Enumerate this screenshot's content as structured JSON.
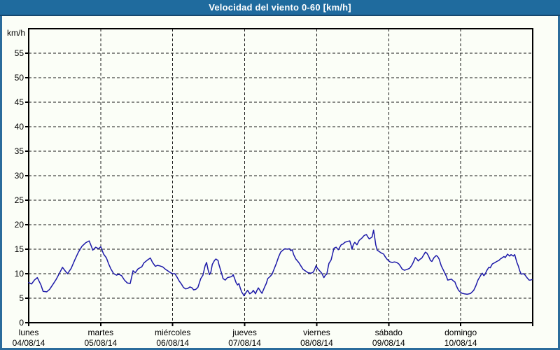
{
  "window": {
    "title": "Velocidad del viento 0-60 [km/h]",
    "colors": {
      "title_bar": "#1f6b9e",
      "title_bar_edge": "#16486e",
      "title_text": "#ffffff",
      "frame": "#2b6c9c",
      "background": "#fbfef7",
      "axis": "#000000",
      "grid": "#1a1a1a",
      "line": "#1c19a8"
    }
  },
  "chart_data": {
    "type": "line",
    "title": "Velocidad del viento 0-60 [km/h]",
    "ylabel": "km/h",
    "ylim": [
      0,
      60
    ],
    "y_tick_step": 5,
    "y_tick_labels": [
      "0",
      "5",
      "10",
      "15",
      "20",
      "25",
      "30",
      "35",
      "40",
      "45",
      "50",
      "55"
    ],
    "grid": "dashed",
    "legend": "none",
    "x_axis": {
      "unit": "days",
      "range_days": [
        0,
        7
      ],
      "days": [
        {
          "label": "lunes",
          "date": "04/08/14"
        },
        {
          "label": "martes",
          "date": "05/08/14"
        },
        {
          "label": "miércoles",
          "date": "06/08/14"
        },
        {
          "label": "jueves",
          "date": "07/08/14"
        },
        {
          "label": "viernes",
          "date": "08/08/14"
        },
        {
          "label": "sábado",
          "date": "09/08/14"
        },
        {
          "label": "domingo",
          "date": "10/08/14"
        }
      ]
    },
    "series": [
      {
        "name": "velocidad-del-viento",
        "color": "#1c19a8",
        "points": [
          [
            0.0,
            8.2
          ],
          [
            0.04,
            7.9
          ],
          [
            0.08,
            8.7
          ],
          [
            0.12,
            9.2
          ],
          [
            0.17,
            7.7
          ],
          [
            0.2,
            6.4
          ],
          [
            0.25,
            6.3
          ],
          [
            0.29,
            6.8
          ],
          [
            0.34,
            7.9
          ],
          [
            0.38,
            8.8
          ],
          [
            0.42,
            9.9
          ],
          [
            0.47,
            11.3
          ],
          [
            0.51,
            10.5
          ],
          [
            0.54,
            10.0
          ],
          [
            0.59,
            11.1
          ],
          [
            0.64,
            12.8
          ],
          [
            0.69,
            14.4
          ],
          [
            0.74,
            15.6
          ],
          [
            0.79,
            16.3
          ],
          [
            0.84,
            16.7
          ],
          [
            0.87,
            15.6
          ],
          [
            0.89,
            14.8
          ],
          [
            0.93,
            15.4
          ],
          [
            0.97,
            15.1
          ],
          [
            1.0,
            15.5
          ],
          [
            1.04,
            14.0
          ],
          [
            1.08,
            13.2
          ],
          [
            1.11,
            12.0
          ],
          [
            1.14,
            11.0
          ],
          [
            1.18,
            10.0
          ],
          [
            1.22,
            9.7
          ],
          [
            1.25,
            9.9
          ],
          [
            1.29,
            9.6
          ],
          [
            1.33,
            8.7
          ],
          [
            1.37,
            8.1
          ],
          [
            1.41,
            8.0
          ],
          [
            1.45,
            10.6
          ],
          [
            1.48,
            10.2
          ],
          [
            1.52,
            11.0
          ],
          [
            1.57,
            11.4
          ],
          [
            1.6,
            12.2
          ],
          [
            1.65,
            12.8
          ],
          [
            1.69,
            13.2
          ],
          [
            1.72,
            12.3
          ],
          [
            1.76,
            11.5
          ],
          [
            1.79,
            11.7
          ],
          [
            1.82,
            11.6
          ],
          [
            1.86,
            11.4
          ],
          [
            1.9,
            10.9
          ],
          [
            1.93,
            10.6
          ],
          [
            1.97,
            10.2
          ],
          [
            2.0,
            10.0
          ],
          [
            2.03,
            10.0
          ],
          [
            2.06,
            9.3
          ],
          [
            2.09,
            8.5
          ],
          [
            2.12,
            7.9
          ],
          [
            2.15,
            7.2
          ],
          [
            2.18,
            6.9
          ],
          [
            2.21,
            7.0
          ],
          [
            2.24,
            7.3
          ],
          [
            2.27,
            7.1
          ],
          [
            2.29,
            6.7
          ],
          [
            2.32,
            6.8
          ],
          [
            2.35,
            7.2
          ],
          [
            2.39,
            9.0
          ],
          [
            2.42,
            9.7
          ],
          [
            2.45,
            11.6
          ],
          [
            2.47,
            12.3
          ],
          [
            2.49,
            10.9
          ],
          [
            2.51,
            9.8
          ],
          [
            2.53,
            10.3
          ],
          [
            2.55,
            11.9
          ],
          [
            2.58,
            12.7
          ],
          [
            2.6,
            13.0
          ],
          [
            2.63,
            12.7
          ],
          [
            2.64,
            12.0
          ],
          [
            2.66,
            11.0
          ],
          [
            2.68,
            10.0
          ],
          [
            2.7,
            9.0
          ],
          [
            2.73,
            8.7
          ],
          [
            2.76,
            9.2
          ],
          [
            2.79,
            9.3
          ],
          [
            2.82,
            9.4
          ],
          [
            2.84,
            9.8
          ],
          [
            2.86,
            9.0
          ],
          [
            2.88,
            8.2
          ],
          [
            2.9,
            7.7
          ],
          [
            2.92,
            8.0
          ],
          [
            2.94,
            7.0
          ],
          [
            2.96,
            6.2
          ],
          [
            2.98,
            5.8
          ],
          [
            2.99,
            5.5
          ],
          [
            3.02,
            6.2
          ],
          [
            3.04,
            6.6
          ],
          [
            3.07,
            5.9
          ],
          [
            3.1,
            6.2
          ],
          [
            3.12,
            6.6
          ],
          [
            3.15,
            5.9
          ],
          [
            3.17,
            6.6
          ],
          [
            3.19,
            7.1
          ],
          [
            3.22,
            6.4
          ],
          [
            3.24,
            6.0
          ],
          [
            3.26,
            6.7
          ],
          [
            3.28,
            7.4
          ],
          [
            3.3,
            8.0
          ],
          [
            3.32,
            9.0
          ],
          [
            3.35,
            9.4
          ],
          [
            3.38,
            9.9
          ],
          [
            3.41,
            11.0
          ],
          [
            3.44,
            12.1
          ],
          [
            3.47,
            13.4
          ],
          [
            3.5,
            14.4
          ],
          [
            3.53,
            14.8
          ],
          [
            3.56,
            15.1
          ],
          [
            3.59,
            15.0
          ],
          [
            3.62,
            15.1
          ],
          [
            3.64,
            14.7
          ],
          [
            3.66,
            14.9
          ],
          [
            3.68,
            13.9
          ],
          [
            3.71,
            13.0
          ],
          [
            3.75,
            12.3
          ],
          [
            3.78,
            11.6
          ],
          [
            3.81,
            10.9
          ],
          [
            3.85,
            10.5
          ],
          [
            3.88,
            10.2
          ],
          [
            3.92,
            10.1
          ],
          [
            3.95,
            10.3
          ],
          [
            3.97,
            10.8
          ],
          [
            3.99,
            11.6
          ],
          [
            4.01,
            11.1
          ],
          [
            4.04,
            10.6
          ],
          [
            4.07,
            10.1
          ],
          [
            4.1,
            9.2
          ],
          [
            4.12,
            9.7
          ],
          [
            4.14,
            9.9
          ],
          [
            4.17,
            12.1
          ],
          [
            4.2,
            12.8
          ],
          [
            4.24,
            15.2
          ],
          [
            4.27,
            15.4
          ],
          [
            4.3,
            14.9
          ],
          [
            4.34,
            15.9
          ],
          [
            4.37,
            16.1
          ],
          [
            4.39,
            16.4
          ],
          [
            4.43,
            16.6
          ],
          [
            4.46,
            16.7
          ],
          [
            4.48,
            15.7
          ],
          [
            4.49,
            15.0
          ],
          [
            4.51,
            16.0
          ],
          [
            4.53,
            16.4
          ],
          [
            4.56,
            15.9
          ],
          [
            4.59,
            16.8
          ],
          [
            4.63,
            17.3
          ],
          [
            4.66,
            17.8
          ],
          [
            4.69,
            18.0
          ],
          [
            4.71,
            17.5
          ],
          [
            4.73,
            17.1
          ],
          [
            4.75,
            17.3
          ],
          [
            4.77,
            17.5
          ],
          [
            4.79,
            18.9
          ],
          [
            4.81,
            17.0
          ],
          [
            4.82,
            15.9
          ],
          [
            4.84,
            14.8
          ],
          [
            4.86,
            14.6
          ],
          [
            4.9,
            14.2
          ],
          [
            4.93,
            14.0
          ],
          [
            4.95,
            13.5
          ],
          [
            4.98,
            12.9
          ],
          [
            5.02,
            12.4
          ],
          [
            5.05,
            12.3
          ],
          [
            5.08,
            12.4
          ],
          [
            5.11,
            12.3
          ],
          [
            5.14,
            12.0
          ],
          [
            5.16,
            11.6
          ],
          [
            5.19,
            10.9
          ],
          [
            5.22,
            10.7
          ],
          [
            5.26,
            10.9
          ],
          [
            5.29,
            11.1
          ],
          [
            5.32,
            11.7
          ],
          [
            5.34,
            12.3
          ],
          [
            5.37,
            13.3
          ],
          [
            5.39,
            13.0
          ],
          [
            5.41,
            12.6
          ],
          [
            5.43,
            12.9
          ],
          [
            5.46,
            13.2
          ],
          [
            5.48,
            13.7
          ],
          [
            5.51,
            14.4
          ],
          [
            5.53,
            14.2
          ],
          [
            5.55,
            13.7
          ],
          [
            5.58,
            12.7
          ],
          [
            5.6,
            12.5
          ],
          [
            5.63,
            13.3
          ],
          [
            5.66,
            13.7
          ],
          [
            5.68,
            13.5
          ],
          [
            5.7,
            13.0
          ],
          [
            5.73,
            11.6
          ],
          [
            5.76,
            10.7
          ],
          [
            5.78,
            10.1
          ],
          [
            5.8,
            9.5
          ],
          [
            5.82,
            8.7
          ],
          [
            5.85,
            8.8
          ],
          [
            5.87,
            8.9
          ],
          [
            5.9,
            8.5
          ],
          [
            5.92,
            8.3
          ],
          [
            5.94,
            7.5
          ],
          [
            5.97,
            6.6
          ],
          [
            6.0,
            6.2
          ],
          [
            6.02,
            6.0
          ],
          [
            6.05,
            5.9
          ],
          [
            6.09,
            5.8
          ],
          [
            6.12,
            5.9
          ],
          [
            6.14,
            6.0
          ],
          [
            6.18,
            6.6
          ],
          [
            6.21,
            7.5
          ],
          [
            6.24,
            8.7
          ],
          [
            6.28,
            9.7
          ],
          [
            6.3,
            10.1
          ],
          [
            6.32,
            9.6
          ],
          [
            6.34,
            9.9
          ],
          [
            6.36,
            10.6
          ],
          [
            6.39,
            11.3
          ],
          [
            6.41,
            11.2
          ],
          [
            6.44,
            12.0
          ],
          [
            6.48,
            12.3
          ],
          [
            6.5,
            12.5
          ],
          [
            6.53,
            12.7
          ],
          [
            6.55,
            13.0
          ],
          [
            6.57,
            13.2
          ],
          [
            6.6,
            13.5
          ],
          [
            6.62,
            13.3
          ],
          [
            6.65,
            14.0
          ],
          [
            6.68,
            13.6
          ],
          [
            6.7,
            13.9
          ],
          [
            6.73,
            13.6
          ],
          [
            6.75,
            13.9
          ],
          [
            6.78,
            12.3
          ],
          [
            6.8,
            11.6
          ],
          [
            6.82,
            10.6
          ],
          [
            6.84,
            9.9
          ],
          [
            6.87,
            10.0
          ],
          [
            6.89,
            9.8
          ],
          [
            6.92,
            9.2
          ],
          [
            6.95,
            8.7
          ],
          [
            6.97,
            8.7
          ],
          [
            6.99,
            8.8
          ]
        ]
      }
    ]
  }
}
